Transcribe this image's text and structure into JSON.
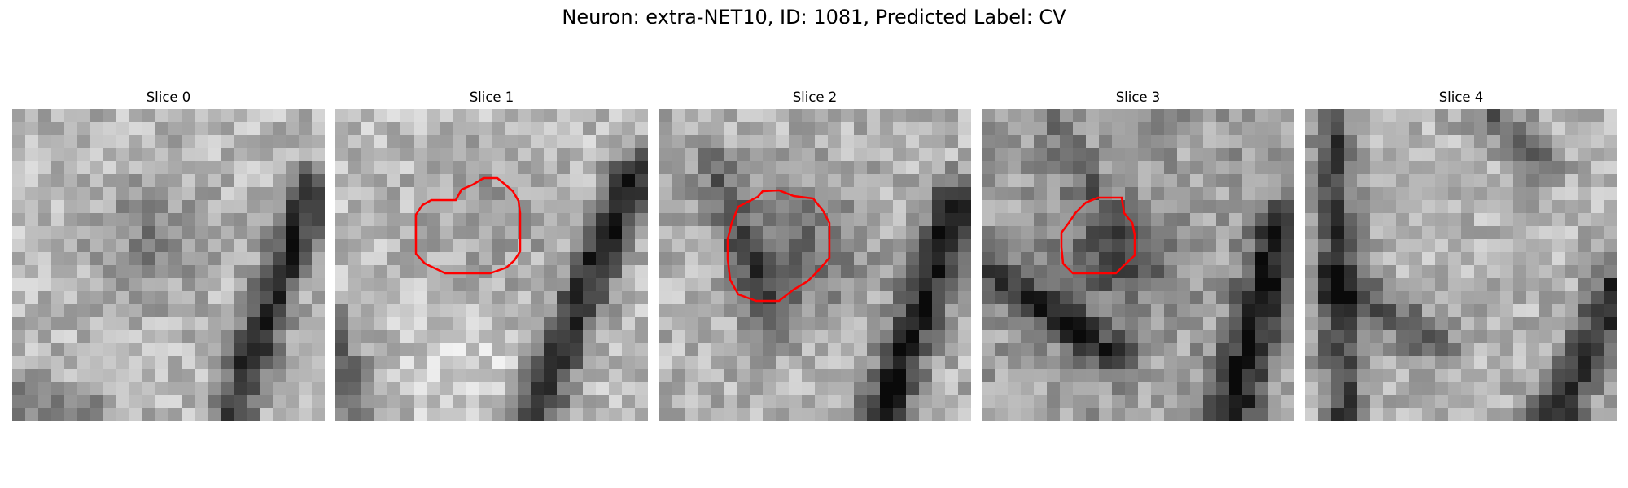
{
  "title": "Neuron: extra-NET10, ID: 1081, Predicted Label: CV",
  "colors": {
    "background": "#ffffff",
    "contour": "#ff0000",
    "image_colormap": "grayscale"
  },
  "panels": [
    {
      "title": "Slice 0",
      "has_contour": false
    },
    {
      "title": "Slice 1",
      "has_contour": true
    },
    {
      "title": "Slice 2",
      "has_contour": true
    },
    {
      "title": "Slice 3",
      "has_contour": true
    },
    {
      "title": "Slice 4",
      "has_contour": false
    }
  ]
}
